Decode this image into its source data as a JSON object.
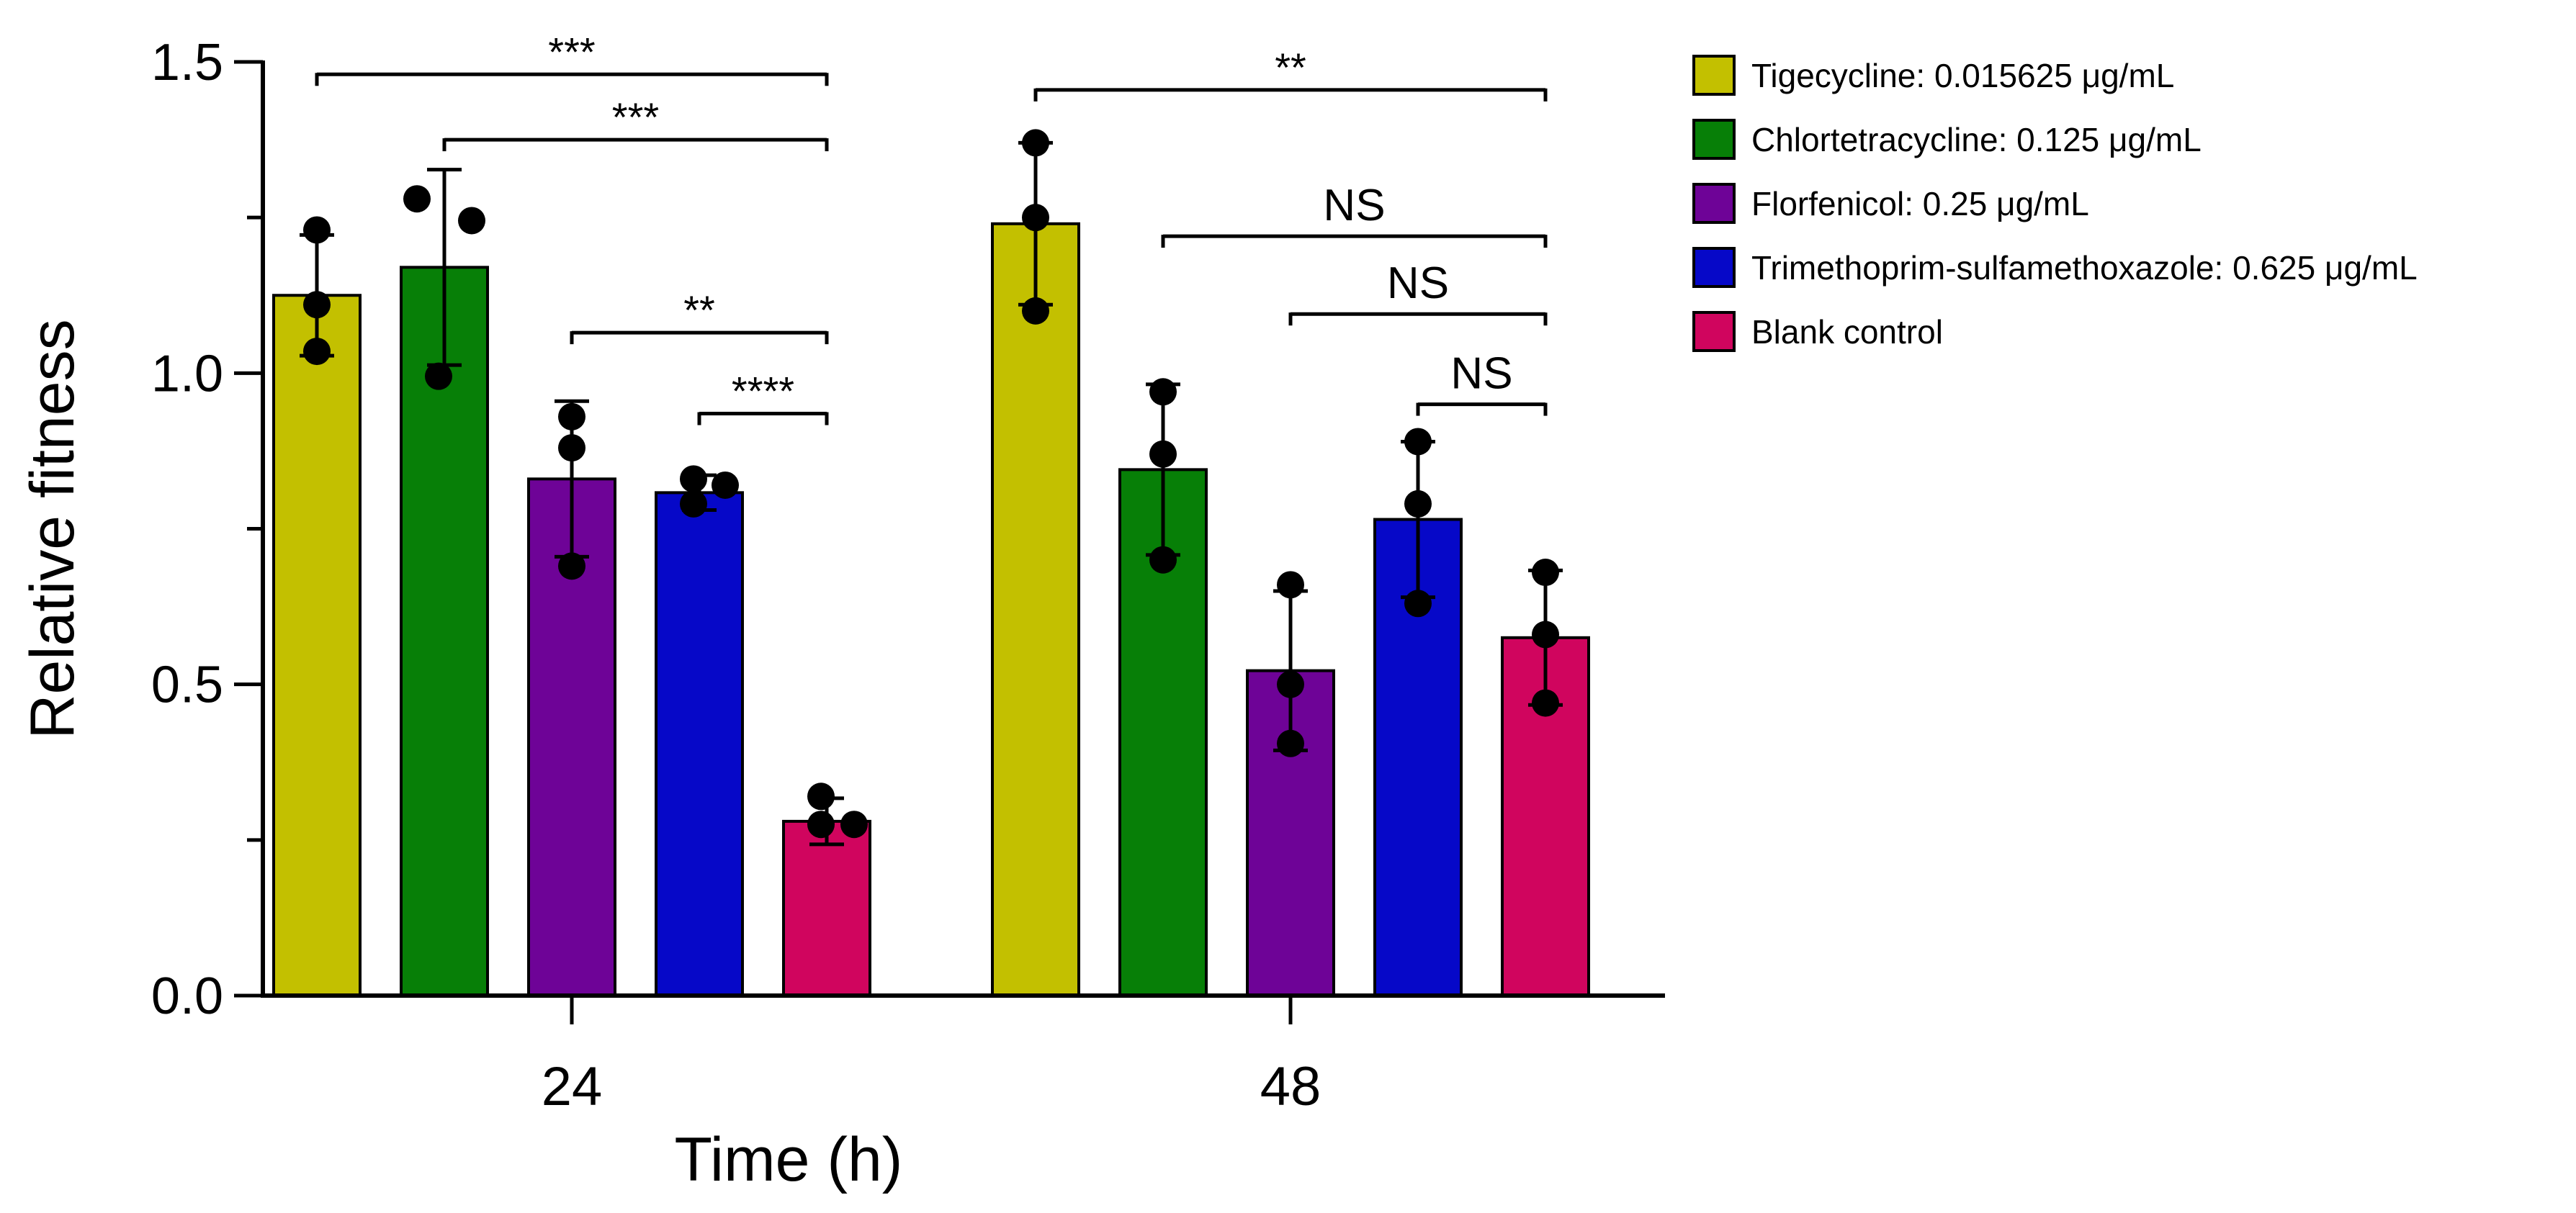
{
  "chart_data": {
    "type": "bar",
    "xlabel": "Time (h)",
    "ylabel": "Relative fitness",
    "ylim": [
      0,
      1.5
    ],
    "yticks": [
      "0.0",
      "0.5",
      "1.0",
      "1.5"
    ],
    "categories": [
      "24",
      "48"
    ],
    "series": [
      {
        "name": "Tigecycline: 0.015625 μg/mL",
        "color": "#c3c000",
        "values": [
          1.125,
          1.24
        ],
        "errors": [
          0.097,
          0.13
        ],
        "points": [
          [
            1.23,
            1.11,
            1.035
          ],
          [
            1.37,
            1.25,
            1.1
          ]
        ]
      },
      {
        "name": "Chlortetracycline: 0.125 μg/mL",
        "color": "#077f07",
        "values": [
          1.17,
          0.845
        ],
        "errors": [
          0.157,
          0.137
        ],
        "points": [
          [
            1.28,
            1.245,
            0.995
          ],
          [
            0.97,
            0.87,
            0.7
          ]
        ]
      },
      {
        "name": "Florfenicol: 0.25 μg/mL",
        "color": "#6e0397",
        "values": [
          0.83,
          0.522
        ],
        "errors": [
          0.125,
          0.128
        ],
        "points": [
          [
            0.93,
            0.88,
            0.69
          ],
          [
            0.66,
            0.5,
            0.405
          ]
        ]
      },
      {
        "name": "Trimethoprim-sulfamethoxazole: 0.625 μg/mL",
        "color": "#0608c8",
        "values": [
          0.808,
          0.765
        ],
        "errors": [
          0.028,
          0.125
        ],
        "points": [
          [
            0.83,
            0.82,
            0.79
          ],
          [
            0.89,
            0.79,
            0.63
          ]
        ]
      },
      {
        "name": "Blank control",
        "color": "#d0055e",
        "values": [
          0.28,
          0.575
        ],
        "errors": [
          0.037,
          0.108
        ],
        "points": [
          [
            0.32,
            0.275,
            0.275
          ],
          [
            0.68,
            0.58,
            0.47
          ]
        ]
      }
    ],
    "significance": [
      {
        "group": 0,
        "from": 0,
        "to": 4,
        "label": "***",
        "y": 1.48
      },
      {
        "group": 0,
        "from": 1,
        "to": 4,
        "label": "***",
        "y": 1.375
      },
      {
        "group": 0,
        "from": 2,
        "to": 4,
        "label": "**",
        "y": 1.065
      },
      {
        "group": 0,
        "from": 3,
        "to": 4,
        "label": "****",
        "y": 0.935
      },
      {
        "group": 1,
        "from": 0,
        "to": 4,
        "label": "**",
        "y": 1.455
      },
      {
        "group": 1,
        "from": 1,
        "to": 4,
        "label": "NS",
        "y": 1.22
      },
      {
        "group": 1,
        "from": 2,
        "to": 4,
        "label": "NS",
        "y": 1.095
      },
      {
        "group": 1,
        "from": 3,
        "to": 4,
        "label": "NS",
        "y": 0.95
      }
    ]
  }
}
